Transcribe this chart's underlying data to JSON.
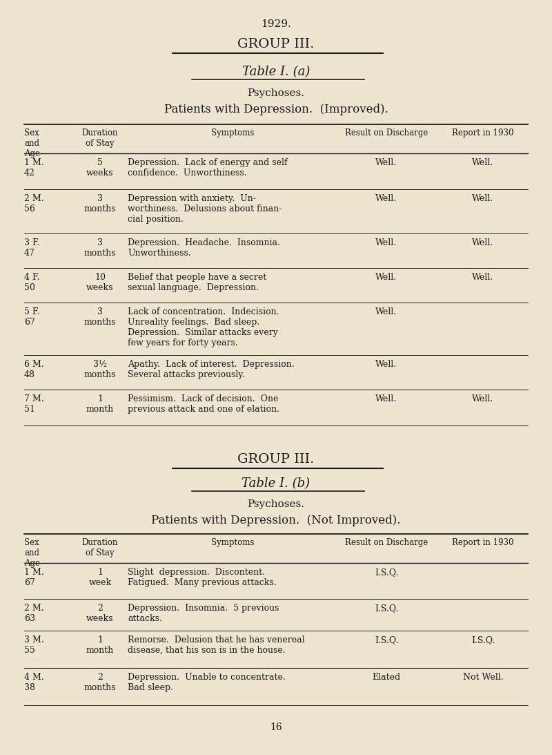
{
  "bg_color": "#ede5d0",
  "text_color": "#1a1a1a",
  "page_number": "16",
  "year": "1929.",
  "group_a_title": "GROUP III.",
  "table_a_title": "Table I. (a)",
  "table_a_subtitle1": "Psychoses.",
  "table_a_subtitle2": "Patients with Depression.  (Improved).",
  "group_b_title": "GROUP III.",
  "table_b_title": "Table I. (b)",
  "table_b_subtitle1": "Psychoses.",
  "table_b_subtitle2": "Patients with Depression.  (Not Improved).",
  "col_headers": [
    "Sex\nand\nAge",
    "Duration\nof Stay",
    "Symptoms",
    "Result on Discharge",
    "Report in 1930"
  ],
  "table_a_rows": [
    {
      "id": "1 M.\n42",
      "duration": "5\nweeks",
      "symptoms": "Depression.  Lack of energy and self\nconfidence.  Unworthiness.",
      "result": "Well.",
      "report": "Well."
    },
    {
      "id": "2 M.\n56",
      "duration": "3\nmonths",
      "symptoms": "Depression with anxiety.  Un-\nworthiness.  Delusions about finan-\ncial position.",
      "result": "Well.",
      "report": "Well."
    },
    {
      "id": "3 F.\n47",
      "duration": "3\nmonths",
      "symptoms": "Depression.  Headache.  Insomnia.\nUnworthiness.",
      "result": "Well.",
      "report": "Well."
    },
    {
      "id": "4 F.\n50",
      "duration": "10\nweeks",
      "symptoms": "Belief that people have a secret\nsexual language.  Depression.",
      "result": "Well.",
      "report": "Well."
    },
    {
      "id": "5 F.\n67",
      "duration": "3\nmonths",
      "symptoms": "Lack of concentration.  Indecision.\nUnreality feelings.  Bad sleep.\nDepression.  Similar attacks every\nfew years for forty years.",
      "result": "Well.",
      "report": ""
    },
    {
      "id": "6 M.\n48",
      "duration": "3½\nmonths",
      "symptoms": "Apathy.  Lack of interest.  Depression.\nSeveral attacks previously.",
      "result": "Well.",
      "report": ""
    },
    {
      "id": "7 M.\n51",
      "duration": "1\nmonth",
      "symptoms": "Pessimism.  Lack of decision.  One\nprevious attack and one of elation.",
      "result": "Well.",
      "report": "Well."
    }
  ],
  "table_b_rows": [
    {
      "id": "1 M.\n67",
      "duration": "1\nweek",
      "symptoms": "Slight  depression.  Discontent.\nFatigued.  Many previous attacks.",
      "result": "I.S.Q.",
      "report": ""
    },
    {
      "id": "2 M.\n63",
      "duration": "2\nweeks",
      "symptoms": "Depression.  Insomnia.  5 previous\nattacks.",
      "result": "I.S.Q.",
      "report": ""
    },
    {
      "id": "3 M.\n55",
      "duration": "1\nmonth",
      "symptoms": "Remorse.  Delusion that he has venereal\ndisease, that his son is in the house.",
      "result": "I.S.Q.",
      "report": "I.S.Q."
    },
    {
      "id": "4 M.\n38",
      "duration": "2\nmonths",
      "symptoms": "Depression.  Unable to concentrate.\nBad sleep.",
      "result": "Elated",
      "report": "Not Well."
    }
  ]
}
